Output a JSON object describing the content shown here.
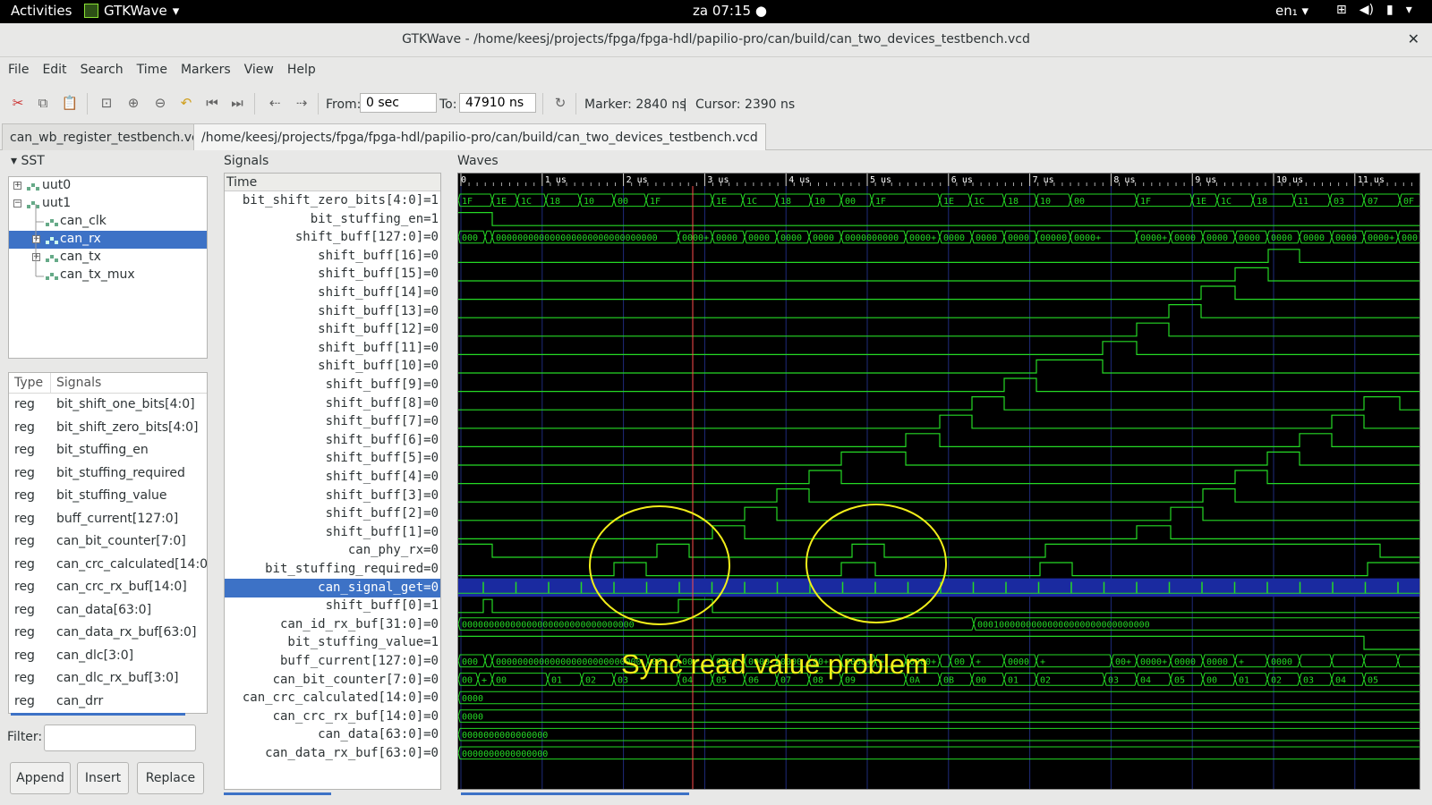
{
  "topbar": {
    "activities": "Activities",
    "app": "GTKWave",
    "clock": "za 07:15",
    "lang": "en₁"
  },
  "window": {
    "title": "GTKWave - /home/keesj/projects/fpga/fpga-hdl/papilio-pro/can/build/can_two_devices_testbench.vcd"
  },
  "menus": [
    "File",
    "Edit",
    "Search",
    "Time",
    "Markers",
    "View",
    "Help"
  ],
  "toolbar": {
    "from_label": "From:",
    "from_value": "0 sec",
    "to_label": "To:",
    "to_value": "47910 ns",
    "marker_text": "Marker: 2840 ns",
    "separator": "|",
    "cursor_text": "Cursor: 2390 ns"
  },
  "tabs": [
    "can_wb_register_testbench.vcd",
    "/home/keesj/projects/fpga/fpga-hdl/papilio-pro/can/build/can_two_devices_testbench.vcd"
  ],
  "sst": {
    "title": "SST",
    "tree": [
      {
        "label": "uut0",
        "expander": "+",
        "level": 0
      },
      {
        "label": "uut1",
        "expander": "-",
        "level": 0
      },
      {
        "label": "can_clk",
        "expander": "",
        "level": 1
      },
      {
        "label": "can_rx",
        "expander": "+",
        "level": 1,
        "selected": true
      },
      {
        "label": "can_tx",
        "expander": "+",
        "level": 1
      },
      {
        "label": "can_tx_mux",
        "expander": "",
        "level": 1
      }
    ],
    "table_headers": {
      "type": "Type",
      "signals": "Signals"
    },
    "table_rows": [
      {
        "type": "reg",
        "name": "bit_shift_one_bits[4:0]"
      },
      {
        "type": "reg",
        "name": "bit_shift_zero_bits[4:0]"
      },
      {
        "type": "reg",
        "name": "bit_stuffing_en"
      },
      {
        "type": "reg",
        "name": "bit_stuffing_required"
      },
      {
        "type": "reg",
        "name": "bit_stuffing_value"
      },
      {
        "type": "reg",
        "name": "buff_current[127:0]"
      },
      {
        "type": "reg",
        "name": "can_bit_counter[7:0]"
      },
      {
        "type": "reg",
        "name": "can_crc_calculated[14:0]"
      },
      {
        "type": "reg",
        "name": "can_crc_rx_buf[14:0]"
      },
      {
        "type": "reg",
        "name": "can_data[63:0]"
      },
      {
        "type": "reg",
        "name": "can_data_rx_buf[63:0]"
      },
      {
        "type": "reg",
        "name": "can_dlc[3:0]"
      },
      {
        "type": "reg",
        "name": "can_dlc_rx_buf[3:0]"
      },
      {
        "type": "reg",
        "name": "can_drr"
      }
    ],
    "filter_label": "Filter:",
    "buttons": [
      "Append",
      "Insert",
      "Replace"
    ]
  },
  "signals": {
    "title": "Signals",
    "time_header": "Time",
    "rows": [
      "bit_shift_zero_bits[4:0]=1",
      "bit_stuffing_en=1",
      "shift_buff[127:0]=0",
      "shift_buff[16]=0",
      "shift_buff[15]=0",
      "shift_buff[14]=0",
      "shift_buff[13]=0",
      "shift_buff[12]=0",
      "shift_buff[11]=0",
      "shift_buff[10]=0",
      "shift_buff[9]=0",
      "shift_buff[8]=0",
      "shift_buff[7]=0",
      "shift_buff[6]=0",
      "shift_buff[5]=0",
      "shift_buff[4]=0",
      "shift_buff[3]=0",
      "shift_buff[2]=0",
      "shift_buff[1]=0",
      "can_phy_rx=0",
      "bit_stuffing_required=0",
      "can_signal_get=0",
      "shift_buff[0]=1",
      "can_id_rx_buf[31:0]=0",
      "bit_stuffing_value=1",
      "buff_current[127:0]=0",
      "can_bit_counter[7:0]=0",
      "can_crc_calculated[14:0]=0",
      "can_crc_rx_buf[14:0]=0",
      "can_data[63:0]=0",
      "can_data_rx_buf[63:0]=0"
    ],
    "selected_index": 21
  },
  "waves": {
    "title": "Waves",
    "time_ticks": [
      "0",
      "1 us",
      "2 us",
      "3 us",
      "4 us",
      "5 us",
      "6 us",
      "7 us",
      "8 us",
      "9 us",
      "10 us",
      "11 us"
    ],
    "row0_values": [
      "1F",
      "1E",
      "1C",
      "18",
      "10",
      "00",
      "1F",
      "1E",
      "1C",
      "18",
      "10",
      "00",
      "1F",
      "1E",
      "1C",
      "18",
      "10",
      "00",
      "1F",
      "1E",
      "1C",
      "18",
      "11",
      "03",
      "07",
      "0F",
      "1F"
    ],
    "row2_values": [
      "000+",
      "+",
      "000000000000000000000000000000",
      "0000+",
      "0000+",
      "0000+",
      "0000+",
      "0000+",
      "0000000000+",
      "0000+",
      "0000+",
      "0000+",
      "0000+",
      "0000000000+",
      "0000+",
      "0000+",
      "0000+",
      "0000+",
      "0000+",
      "0000+",
      "0000+",
      "0000+",
      "0000+",
      "00000"
    ],
    "id_values": [
      "00000000000000000000000000000000",
      "00010000000000000000000000000000"
    ],
    "counter_values": [
      "00",
      "+",
      "00",
      "01",
      "02",
      "03",
      "04",
      "05",
      "06",
      "07",
      "08",
      "09",
      "0A",
      "0B",
      "00",
      "01",
      "02",
      "03",
      "04",
      "05",
      "00",
      "01",
      "02",
      "03",
      "04",
      "05"
    ],
    "crc_calc_value": "0000",
    "crc_rx_value": "0000",
    "data_value": "0000000000000000",
    "data_rx_value": "0000000000000000",
    "buff_current_values": [
      "000+",
      "+",
      "0000000000000000000000000000",
      "00+",
      "00+",
      "0000+",
      "0000+",
      "0000+",
      "00+",
      "0000+",
      "+",
      "0000+",
      "+",
      "0000+",
      "+",
      "000000000+",
      "+",
      "00+",
      "0000+",
      "0000+",
      "0000+",
      "+",
      "00000"
    ],
    "annotation": "Sync read value problem",
    "colors": {
      "wave": "#25d925",
      "grid": "#1e2b7a",
      "marker": "#ff4d4d",
      "highlight": "#1a2aa0",
      "annotation": "#f2ee1a"
    }
  }
}
